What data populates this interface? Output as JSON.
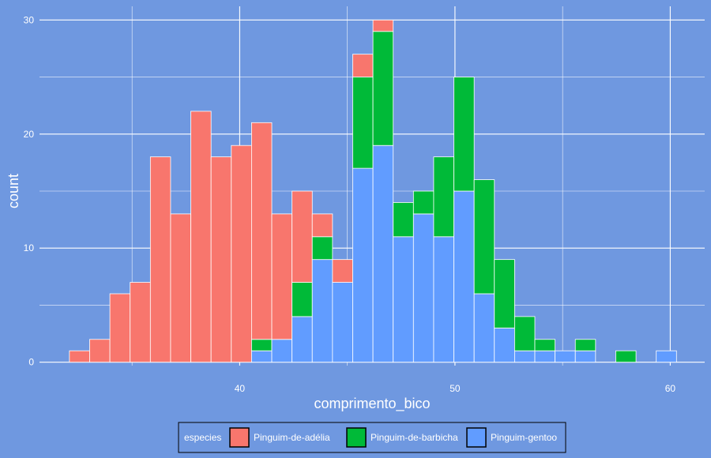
{
  "chart_data": {
    "type": "bar",
    "stacked": true,
    "xlabel": "comprimento_bico",
    "ylabel": "count",
    "xlim": [
      30.7,
      61.6
    ],
    "ylim": [
      -0.3,
      31.2
    ],
    "xticks": [
      40,
      50,
      60
    ],
    "yticks": [
      0,
      10,
      20,
      30
    ],
    "bin_width": 0.94,
    "bins": [
      32.56,
      33.5,
      34.44,
      35.38,
      36.32,
      37.26,
      38.2,
      39.14,
      40.08,
      41.02,
      41.96,
      42.9,
      43.84,
      44.78,
      45.72,
      46.66,
      47.6,
      48.54,
      49.48,
      50.42,
      51.36,
      52.3,
      53.24,
      54.18,
      55.12,
      56.06,
      57.0,
      57.94,
      58.88,
      59.82
    ],
    "series": [
      {
        "name": "Pinguim-gentoo",
        "color": "#619CFF",
        "values": [
          0,
          0,
          0,
          0,
          0,
          0,
          0,
          0,
          0,
          1,
          2,
          4,
          9,
          7,
          17,
          19,
          11,
          13,
          11,
          15,
          6,
          3,
          1,
          1,
          1,
          1,
          0,
          0,
          0,
          1
        ]
      },
      {
        "name": "Pinguim-de-barbicha",
        "color": "#00BA38",
        "values": [
          0,
          0,
          0,
          0,
          0,
          0,
          0,
          0,
          0,
          1,
          0,
          3,
          2,
          0,
          8,
          10,
          3,
          2,
          7,
          10,
          10,
          6,
          3,
          1,
          0,
          1,
          0,
          1,
          0,
          0
        ]
      },
      {
        "name": "Pinguim-de-adélia",
        "color": "#F8766D",
        "values": [
          1,
          2,
          6,
          7,
          18,
          13,
          22,
          18,
          19,
          19,
          11,
          8,
          2,
          2,
          2,
          1,
          0,
          0,
          0,
          0,
          0,
          0,
          0,
          0,
          0,
          0,
          0,
          0,
          0,
          0
        ]
      }
    ],
    "legend": {
      "title": "especies",
      "position": "bottom",
      "items": [
        "Pinguim-de-adélia",
        "Pinguim-de-barbicha",
        "Pinguim-gentoo"
      ]
    },
    "grid": true,
    "background": "#6f98e0",
    "grid_color": "#ffffff"
  }
}
